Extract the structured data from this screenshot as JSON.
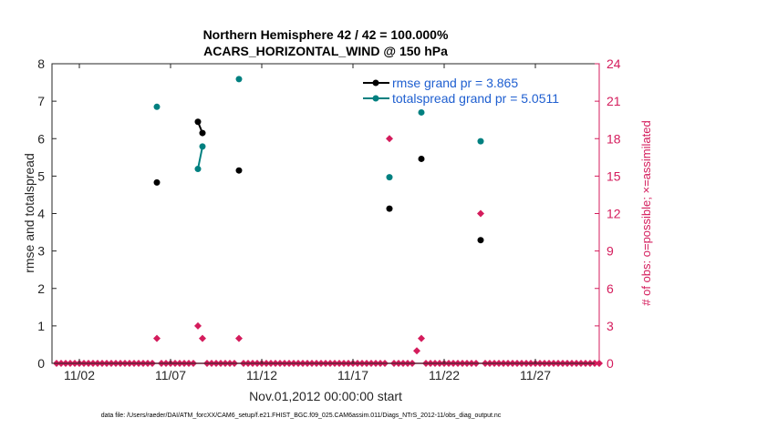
{
  "chart_data": {
    "type": "scatter",
    "title_line1": "Northern Hemisphere 42 / 42 = 100.000%",
    "title_line2": "ACARS_HORIZONTAL_WIND @ 150 hPa",
    "xlabel": "Nov.01,2012 00:00:00 start",
    "ylabel_left": "rmse and totalspread",
    "ylabel_right": "# of obs: o=possible; ×=assimilated",
    "footer": "data file: /Users/raeder/DAI/ATM_forcXX/CAM6_setup/f.e21.FHIST_BGC.f09_025.CAM6assim.011/Diags_NTrS_2012-11/obs_diag_output.nc",
    "xlim": [
      0.5,
      30.5
    ],
    "ylim_left": [
      0,
      8
    ],
    "ylim_right": [
      0,
      24
    ],
    "x_ticks": [
      {
        "x": 2,
        "label": "11/02"
      },
      {
        "x": 7,
        "label": "11/07"
      },
      {
        "x": 12,
        "label": "11/12"
      },
      {
        "x": 17,
        "label": "11/17"
      },
      {
        "x": 22,
        "label": "11/22"
      },
      {
        "x": 27,
        "label": "11/27"
      }
    ],
    "y_ticks_left": [
      "0",
      "1",
      "2",
      "3",
      "4",
      "5",
      "6",
      "7",
      "8"
    ],
    "y_ticks_right": [
      "0",
      "3",
      "6",
      "9",
      "12",
      "15",
      "18",
      "21",
      "24"
    ],
    "legend": [
      {
        "name": "rmse grand pr = 3.865",
        "color": "#000000"
      },
      {
        "name": "totalspread grand pr = 5.0511",
        "color": "#008080"
      }
    ],
    "colors": {
      "rmse": "#000000",
      "spread": "#008080",
      "obs": "#d41c5c",
      "legend_text": "#1f5fd0",
      "right_axis": "#d41c5c"
    },
    "rmse_segments": [
      [
        [
          6.25,
          4.83
        ]
      ],
      [
        [
          8.5,
          6.45
        ],
        [
          8.75,
          6.15
        ]
      ],
      [
        [
          10.75,
          5.15
        ]
      ],
      [
        [
          19.0,
          4.13
        ]
      ],
      [
        [
          20.75,
          5.46
        ]
      ],
      [
        [
          24.0,
          3.29
        ]
      ]
    ],
    "spread_segments": [
      [
        [
          6.25,
          6.85
        ]
      ],
      [
        [
          8.5,
          5.19
        ],
        [
          8.75,
          5.79
        ]
      ],
      [
        [
          10.75,
          7.59
        ]
      ],
      [
        [
          19.0,
          4.97
        ]
      ],
      [
        [
          20.75,
          6.7
        ]
      ],
      [
        [
          24.0,
          5.93
        ]
      ]
    ],
    "obs_start": 0.75,
    "obs_end": 30.5,
    "obs_step": 0.25,
    "obs_nonzero": [
      {
        "x": 6.25,
        "count": 2
      },
      {
        "x": 8.5,
        "count": 3
      },
      {
        "x": 8.75,
        "count": 2
      },
      {
        "x": 10.75,
        "count": 2
      },
      {
        "x": 19.0,
        "count": 18
      },
      {
        "x": 20.5,
        "count": 1
      },
      {
        "x": 20.75,
        "count": 2
      },
      {
        "x": 24.0,
        "count": 12
      }
    ]
  }
}
